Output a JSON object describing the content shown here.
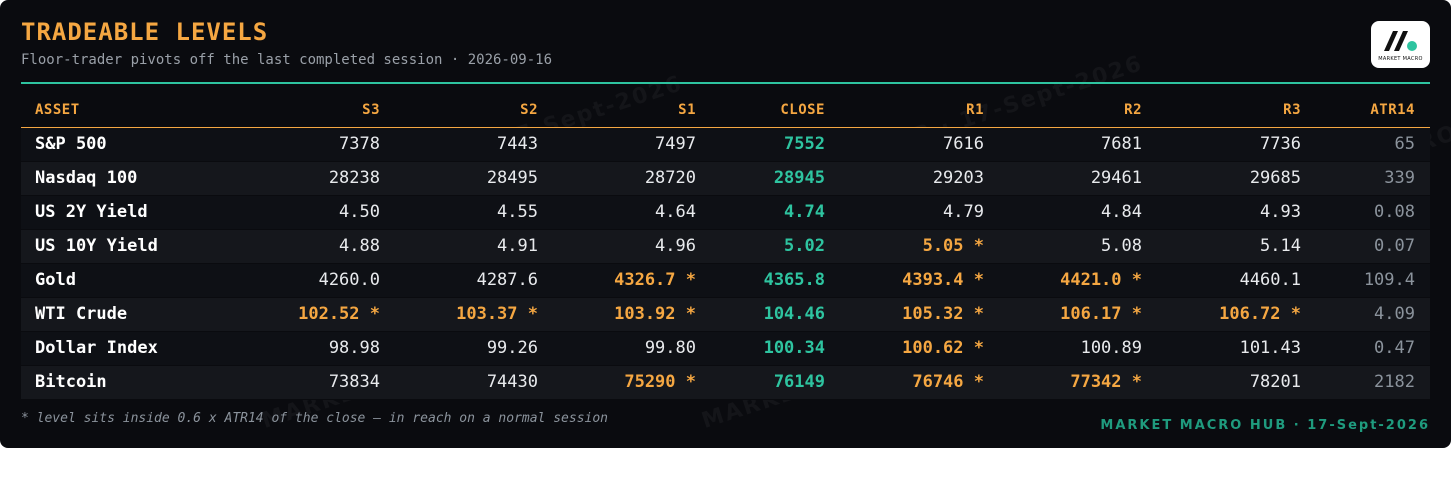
{
  "header": {
    "title": "TRADEABLE LEVELS",
    "subtitle": "Floor-trader pivots off the last completed session · 2026-09-16"
  },
  "logo": {
    "icon": "market-macro-logo-icon",
    "text": "MARKET MACRO"
  },
  "watermark": "MARKET MACRO HUB · 17-Sept-2026",
  "table": {
    "columns": [
      "ASSET",
      "S3",
      "S2",
      "S1",
      "CLOSE",
      "R1",
      "R2",
      "R3",
      "ATR14"
    ],
    "rows": [
      {
        "asset": "S&P 500",
        "s3": "7378",
        "s2": "7443",
        "s1": "7497",
        "close": "7552",
        "r1": "7616",
        "r2": "7681",
        "r3": "7736",
        "atr": "65",
        "hot": []
      },
      {
        "asset": "Nasdaq 100",
        "s3": "28238",
        "s2": "28495",
        "s1": "28720",
        "close": "28945",
        "r1": "29203",
        "r2": "29461",
        "r3": "29685",
        "atr": "339",
        "hot": []
      },
      {
        "asset": "US 2Y Yield",
        "s3": "4.50",
        "s2": "4.55",
        "s1": "4.64",
        "close": "4.74",
        "r1": "4.79",
        "r2": "4.84",
        "r3": "4.93",
        "atr": "0.08",
        "hot": []
      },
      {
        "asset": "US 10Y Yield",
        "s3": "4.88",
        "s2": "4.91",
        "s1": "4.96",
        "close": "5.02",
        "r1": "5.05 *",
        "r2": "5.08",
        "r3": "5.14",
        "atr": "0.07",
        "hot": [
          "r1"
        ]
      },
      {
        "asset": "Gold",
        "s3": "4260.0",
        "s2": "4287.6",
        "s1": "4326.7 *",
        "close": "4365.8",
        "r1": "4393.4 *",
        "r2": "4421.0 *",
        "r3": "4460.1",
        "atr": "109.4",
        "hot": [
          "s1",
          "r1",
          "r2"
        ]
      },
      {
        "asset": "WTI Crude",
        "s3": "102.52 *",
        "s2": "103.37 *",
        "s1": "103.92 *",
        "close": "104.46",
        "r1": "105.32 *",
        "r2": "106.17 *",
        "r3": "106.72 *",
        "atr": "4.09",
        "hot": [
          "s3",
          "s2",
          "s1",
          "r1",
          "r2",
          "r3"
        ]
      },
      {
        "asset": "Dollar Index",
        "s3": "98.98",
        "s2": "99.26",
        "s1": "99.80",
        "close": "100.34",
        "r1": "100.62 *",
        "r2": "100.89",
        "r3": "101.43",
        "atr": "0.47",
        "hot": [
          "r1"
        ]
      },
      {
        "asset": "Bitcoin",
        "s3": "73834",
        "s2": "74430",
        "s1": "75290 *",
        "close": "76149",
        "r1": "76746 *",
        "r2": "77342 *",
        "r3": "78201",
        "atr": "2182",
        "hot": [
          "s1",
          "r1",
          "r2"
        ]
      }
    ]
  },
  "footnote": "* level sits inside 0.6 x ATR14 of the close — in reach on a normal session",
  "brand": "MARKET MACRO HUB · 17-Sept-2026",
  "colors": {
    "accent_orange": "#f5a742",
    "accent_teal": "#2ec4a0",
    "background": "#0a0b0f"
  }
}
